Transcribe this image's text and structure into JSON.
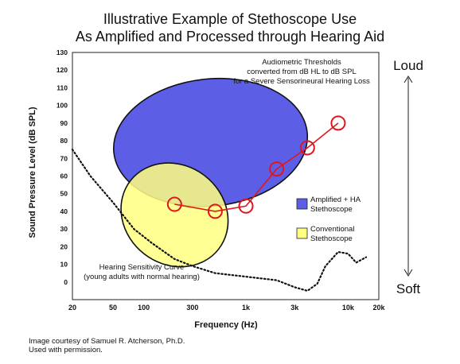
{
  "chart_data": {
    "type": "scatter",
    "title_lines": [
      "Illustrative Example of Stethoscope Use",
      "As Amplified and Processed through Hearing Aid"
    ],
    "xlabel": "Frequency (Hz)",
    "ylabel": "Sound Pressure Level (dB SPL)",
    "x_scale": "log",
    "xlim": [
      20,
      20000
    ],
    "ylim": [
      -10,
      130
    ],
    "x_ticks": [
      {
        "value": 20,
        "label": "20"
      },
      {
        "value": 50,
        "label": "50"
      },
      {
        "value": 100,
        "label": "100"
      },
      {
        "value": 300,
        "label": "300"
      },
      {
        "value": 1000,
        "label": "1k"
      },
      {
        "value": 3000,
        "label": "3k"
      },
      {
        "value": 10000,
        "label": "10k"
      },
      {
        "value": 20000,
        "label": "20k"
      }
    ],
    "y_ticks": [
      0,
      10,
      20,
      30,
      40,
      50,
      60,
      70,
      80,
      90,
      100,
      110,
      120,
      130
    ],
    "thresholds": {
      "label_lines": [
        "Audiometric Thresholds",
        "converted from dB HL to dB SPL",
        "for a Severe Sensorineural Hearing Loss"
      ],
      "color": "#e0161d",
      "x": [
        200,
        500,
        1000,
        2000,
        4000,
        8000
      ],
      "y": [
        44,
        40,
        43,
        64,
        76,
        90
      ]
    },
    "hearing_sensitivity_curve": {
      "label_lines": [
        "Hearing Sensitivity Curve",
        "(young adults with normal hearing)"
      ],
      "x": [
        20,
        30,
        50,
        80,
        120,
        200,
        300,
        500,
        1000,
        2000,
        3000,
        4000,
        5000,
        6000,
        8000,
        10000,
        12000,
        15000
      ],
      "y": [
        75,
        60,
        45,
        30,
        22,
        13,
        9,
        5,
        3,
        1,
        -3,
        -5,
        -1,
        9,
        17,
        16,
        11,
        14
      ]
    },
    "regions": [
      {
        "name": "Amplified + HA Stethoscope",
        "name_lines": [
          "Amplified + HA",
          "Stethoscope"
        ],
        "color": "#5c5fe6",
        "center": [
          450,
          79
        ],
        "x_range": [
          45,
          3600
        ],
        "y_range": [
          40,
          112
        ],
        "tilt_deg": -6
      },
      {
        "name": "Conventional Stethoscope",
        "name_lines": [
          "Conventional",
          "Stethoscope"
        ],
        "color": "#ffff80",
        "center": [
          200,
          38
        ],
        "x_range": [
          50,
          620
        ],
        "y_range": [
          12,
          68
        ],
        "tilt_deg": 38
      }
    ],
    "side_labels": {
      "top": "Loud",
      "bottom": "Soft"
    },
    "grid": false,
    "legend_position": "right"
  },
  "credit_lines": [
    "Image courtesy of Samuel R. Atcherson, Ph.D.",
    "Used with permission."
  ]
}
